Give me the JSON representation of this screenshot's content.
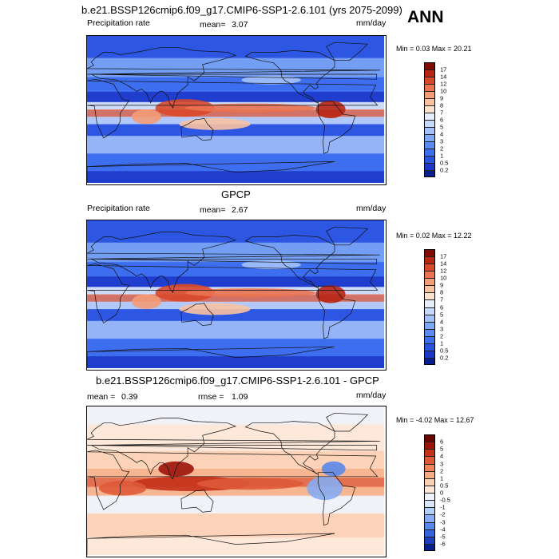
{
  "season": "ANN",
  "chart_data": [
    {
      "type": "heatmap",
      "panel_id": "model",
      "title": "b.e21.BSSP126cmip6.f09_g17.CMIP6-SSP1-2.6.101 (yrs 2075-2099)",
      "left_label": "Precipitation rate",
      "mean_label": "mean=",
      "mean": "3.07",
      "units": "mm/day",
      "minmax": "Min =   0.03 Max =  20.21",
      "min": 0.03,
      "max": 20.21,
      "levels": [
        "0.2",
        "0.5",
        "1",
        "2",
        "3",
        "4",
        "5",
        "6",
        "7",
        "8",
        "9",
        "10",
        "12",
        "14",
        "17"
      ],
      "colors": [
        "#0a1d8f",
        "#1b36c8",
        "#2a52e0",
        "#3e6ef0",
        "#5b8bf2",
        "#7ea7f5",
        "#a3c1f8",
        "#c6d9fb",
        "#e7eefb",
        "#fbe2cf",
        "#f8c2a2",
        "#f39c78",
        "#ea7350",
        "#d9482b",
        "#b72514",
        "#7f0c03"
      ]
    },
    {
      "type": "heatmap",
      "panel_id": "obs",
      "title": "GPCP",
      "left_label": "Precipitation rate",
      "mean_label": "mean=",
      "mean": "2.67",
      "units": "mm/day",
      "minmax": "Min =   0.02 Max =  12.22",
      "min": 0.02,
      "max": 12.22,
      "levels": [
        "0.2",
        "0.5",
        "1",
        "2",
        "3",
        "4",
        "5",
        "6",
        "7",
        "8",
        "9",
        "10",
        "12",
        "14",
        "17"
      ],
      "colors": [
        "#0a1d8f",
        "#1b36c8",
        "#2a52e0",
        "#3e6ef0",
        "#5b8bf2",
        "#7ea7f5",
        "#a3c1f8",
        "#c6d9fb",
        "#e7eefb",
        "#fbe2cf",
        "#f8c2a2",
        "#f39c78",
        "#ea7350",
        "#d9482b",
        "#b72514",
        "#7f0c03"
      ]
    },
    {
      "type": "heatmap",
      "panel_id": "diff",
      "title": "b.e21.BSSP126cmip6.f09_g17.CMIP6-SSP1-2.6.101 - GPCP",
      "mean_label": "mean =",
      "mean": "0.39",
      "rmse_label": "rmse =",
      "rmse": "1.09",
      "units": "mm/day",
      "minmax": "Min =  -4.02 Max =  12.67",
      "min": -4.02,
      "max": 12.67,
      "levels": [
        "-6",
        "-5",
        "-4",
        "-3",
        "-2",
        "-1",
        "-0.5",
        "0",
        "0.5",
        "1",
        "2",
        "3",
        "4",
        "5",
        "6"
      ],
      "colors": [
        "#0b1f8c",
        "#1d3fbf",
        "#3463dd",
        "#5a87ea",
        "#86abf2",
        "#b3cdf7",
        "#d9e6fa",
        "#eef3fb",
        "#fde8d9",
        "#fbcfb1",
        "#f6ab85",
        "#ee835c",
        "#de5a37",
        "#c4311b",
        "#9b140a",
        "#6a0601"
      ]
    }
  ]
}
